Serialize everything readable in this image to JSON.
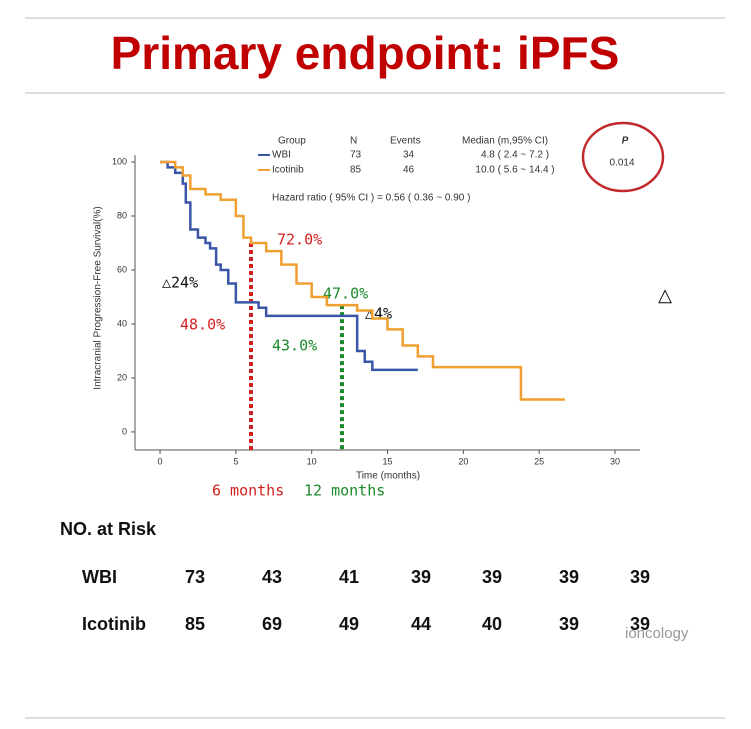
{
  "title": "Primary endpoint: iPFS",
  "chart_data": {
    "type": "line",
    "y_label": "Intracranial Progression-Free Survival(%)",
    "x_label": "Time (months)",
    "xlim": [
      -1.65,
      31.65
    ],
    "ylim": [
      -6.7,
      102.6
    ],
    "xticks": [
      0,
      5,
      10,
      15,
      20,
      25,
      30
    ],
    "yticks": [
      0,
      20,
      40,
      60,
      80,
      100
    ],
    "series": [
      {
        "name": "WBI",
        "color": "#3a56a8",
        "x": [
          0,
          0.5,
          0.5,
          1,
          1,
          1.5,
          1.5,
          1.7,
          1.7,
          2,
          2,
          2.5,
          2.5,
          3,
          3,
          3.3,
          3.3,
          3.7,
          3.7,
          4,
          4,
          4.5,
          4.5,
          5,
          5,
          6,
          6,
          6.5,
          6.5,
          7,
          7,
          12.5,
          12.5,
          13,
          13,
          13.5,
          13.5,
          14,
          14,
          17
        ],
        "values": [
          100,
          100,
          98,
          98,
          96,
          96,
          92,
          92,
          85,
          85,
          75,
          75,
          72,
          72,
          70,
          70,
          68,
          68,
          62,
          62,
          60,
          60,
          55,
          55,
          48,
          48,
          48,
          48,
          46,
          46,
          43,
          43,
          43,
          43,
          30,
          30,
          26,
          26,
          23,
          23
        ]
      },
      {
        "name": "Icotinib",
        "color": "#f0a030",
        "x": [
          0,
          1,
          1,
          1.5,
          1.5,
          2,
          2,
          3,
          3,
          4,
          4,
          5,
          5,
          5.5,
          5.5,
          6,
          6,
          7,
          7,
          8,
          8,
          9,
          9,
          10,
          10,
          11,
          11,
          13,
          13,
          14,
          14,
          15,
          15,
          16,
          16,
          17,
          17,
          18,
          18,
          23.8,
          23.8,
          26.7
        ],
        "values": [
          100,
          100,
          98,
          98,
          95,
          95,
          90,
          90,
          88,
          88,
          86,
          86,
          80,
          80,
          72,
          72,
          70,
          70,
          67,
          67,
          62,
          62,
          55,
          55,
          50,
          50,
          47,
          47,
          45,
          45,
          42,
          42,
          38,
          38,
          32,
          32,
          28,
          28,
          24,
          24,
          12,
          12
        ]
      }
    ],
    "vlines": [
      {
        "x": 6,
        "y": 70,
        "color": "#d42020"
      },
      {
        "x": 12,
        "y": 47,
        "color": "#1a8a2a"
      }
    ],
    "annotations": [
      "72.0%",
      "48.0%",
      "47.0%",
      "43.0%",
      "△24%",
      "△4%",
      "6 months",
      "12 months"
    ],
    "legend_table": {
      "headers": [
        "Group",
        "N",
        "Events",
        "Median (m,95% CI)"
      ],
      "rows": [
        [
          "73",
          "34",
          "4.8 ( 2.4 ~ 7.2 )"
        ],
        [
          "85",
          "46",
          "10.0 ( 5.6 ~ 14.4 )"
        ]
      ],
      "p_header": "P",
      "p_value": "0.014",
      "hazard": "Hazard ratio ( 95% CI ) = 0.56 ( 0.36 ~ 0.90 )"
    }
  },
  "side_mark": "△",
  "watermark": "ioncology",
  "risk_table": {
    "title": "NO. at Risk",
    "rows": [
      {
        "name": "WBI",
        "values": [
          "73",
          "43",
          "41",
          "39",
          "39",
          "39",
          "39"
        ]
      },
      {
        "name": "Icotinib",
        "values": [
          "85",
          "69",
          "49",
          "44",
          "40",
          "39",
          "39"
        ]
      }
    ]
  }
}
